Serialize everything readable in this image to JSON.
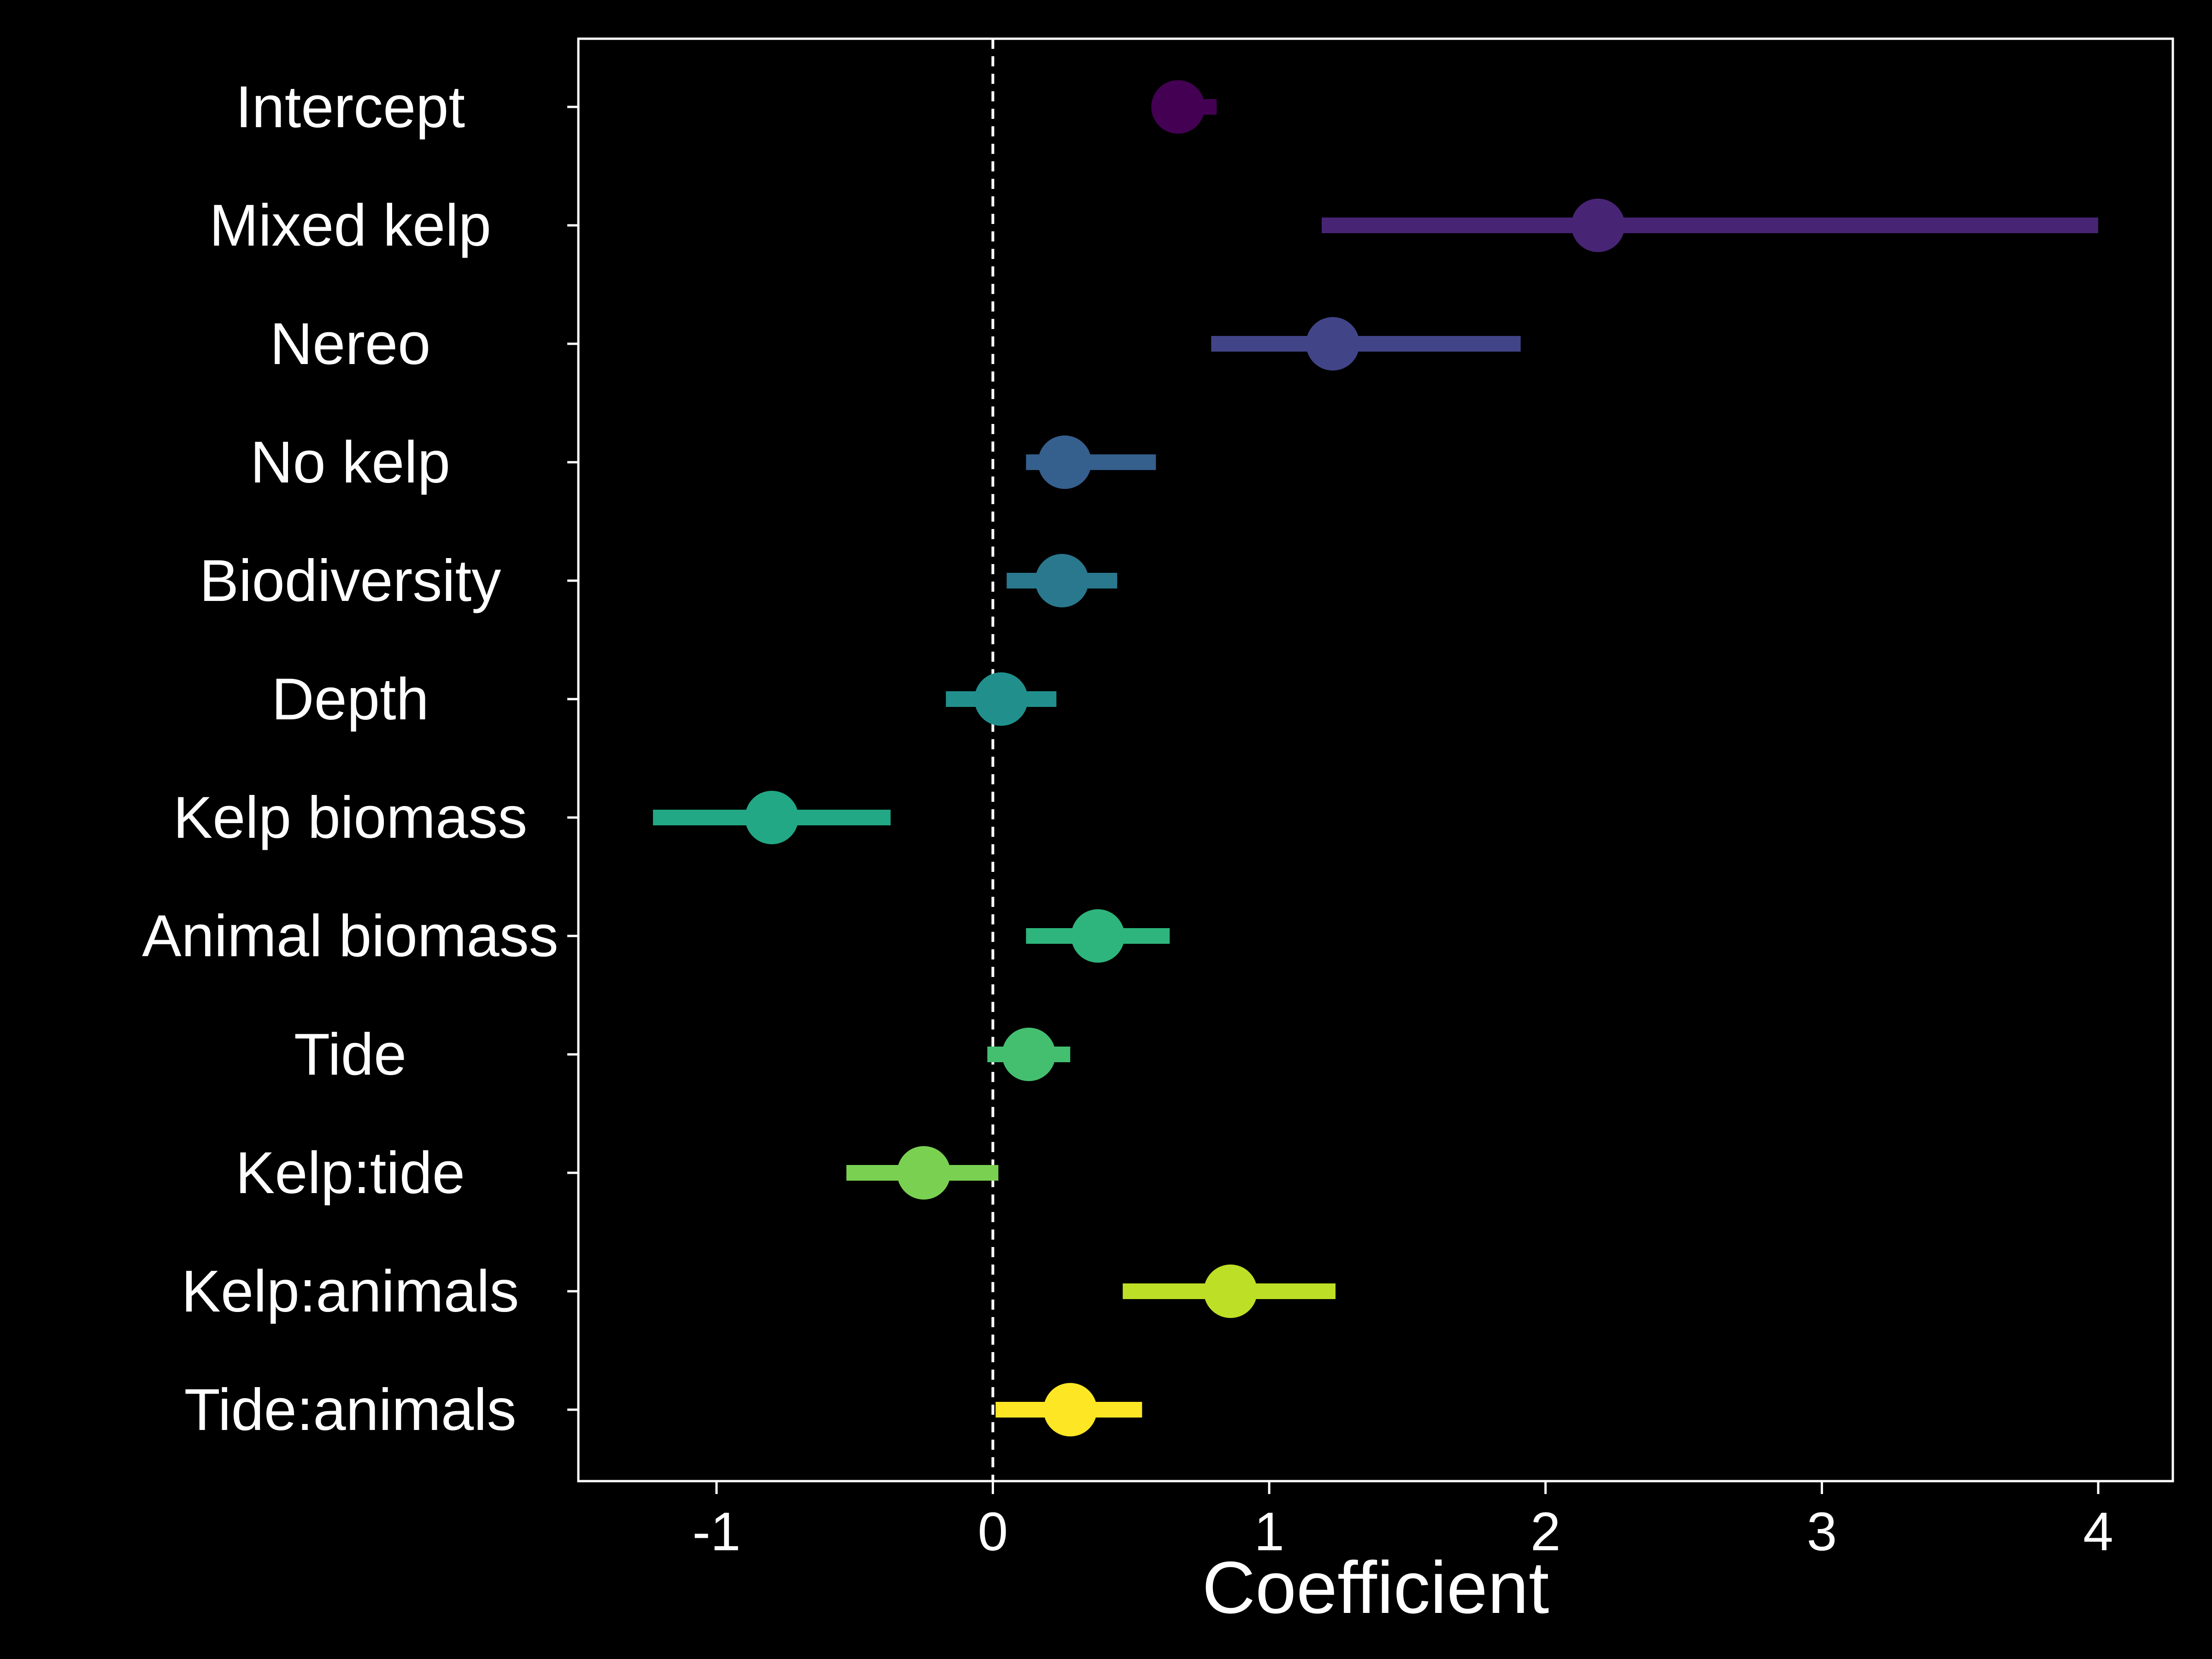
{
  "chart_data": {
    "type": "scatter",
    "subtype": "coefficient-plot",
    "xlabel": "Coefficient",
    "ylabel": "",
    "title": "",
    "xlim": [
      -1.5,
      4.27
    ],
    "x_ticks": [
      -1,
      0,
      1,
      2,
      3,
      4
    ],
    "x_tick_labels": [
      "-1",
      "0",
      "1",
      "2",
      "3",
      "4"
    ],
    "reference_line": {
      "x": 0,
      "style": "dashed",
      "color": "#ffffff"
    },
    "grid": false,
    "background": "#000000",
    "foreground": "#ffffff",
    "points": [
      {
        "label": "Intercept",
        "estimate": 0.67,
        "lower": 0.58,
        "upper": 0.81,
        "color": "#440154"
      },
      {
        "label": "Mixed kelp",
        "estimate": 2.19,
        "lower": 1.19,
        "upper": 4.0,
        "color": "#482475"
      },
      {
        "label": "Nereo",
        "estimate": 1.23,
        "lower": 0.79,
        "upper": 1.91,
        "color": "#414487"
      },
      {
        "label": "No kelp",
        "estimate": 0.26,
        "lower": 0.12,
        "upper": 0.59,
        "color": "#355F8D"
      },
      {
        "label": "Biodiversity",
        "estimate": 0.25,
        "lower": 0.05,
        "upper": 0.45,
        "color": "#2A788E"
      },
      {
        "label": "Depth",
        "estimate": 0.03,
        "lower": -0.17,
        "upper": 0.23,
        "color": "#21908D"
      },
      {
        "label": "Kelp biomass",
        "estimate": -0.8,
        "lower": -1.23,
        "upper": -0.37,
        "color": "#22A884"
      },
      {
        "label": "Animal biomass",
        "estimate": 0.38,
        "lower": 0.12,
        "upper": 0.64,
        "color": "#2DB57D"
      },
      {
        "label": "Tide",
        "estimate": 0.13,
        "lower": -0.02,
        "upper": 0.28,
        "color": "#44BF70"
      },
      {
        "label": "Kelp:tide",
        "estimate": -0.25,
        "lower": -0.53,
        "upper": 0.02,
        "color": "#7AD151"
      },
      {
        "label": "Kelp:animals",
        "estimate": 0.86,
        "lower": 0.47,
        "upper": 1.24,
        "color": "#BDDF26"
      },
      {
        "label": "Tide:animals",
        "estimate": 0.28,
        "lower": 0.01,
        "upper": 0.54,
        "color": "#FDE725"
      }
    ]
  }
}
